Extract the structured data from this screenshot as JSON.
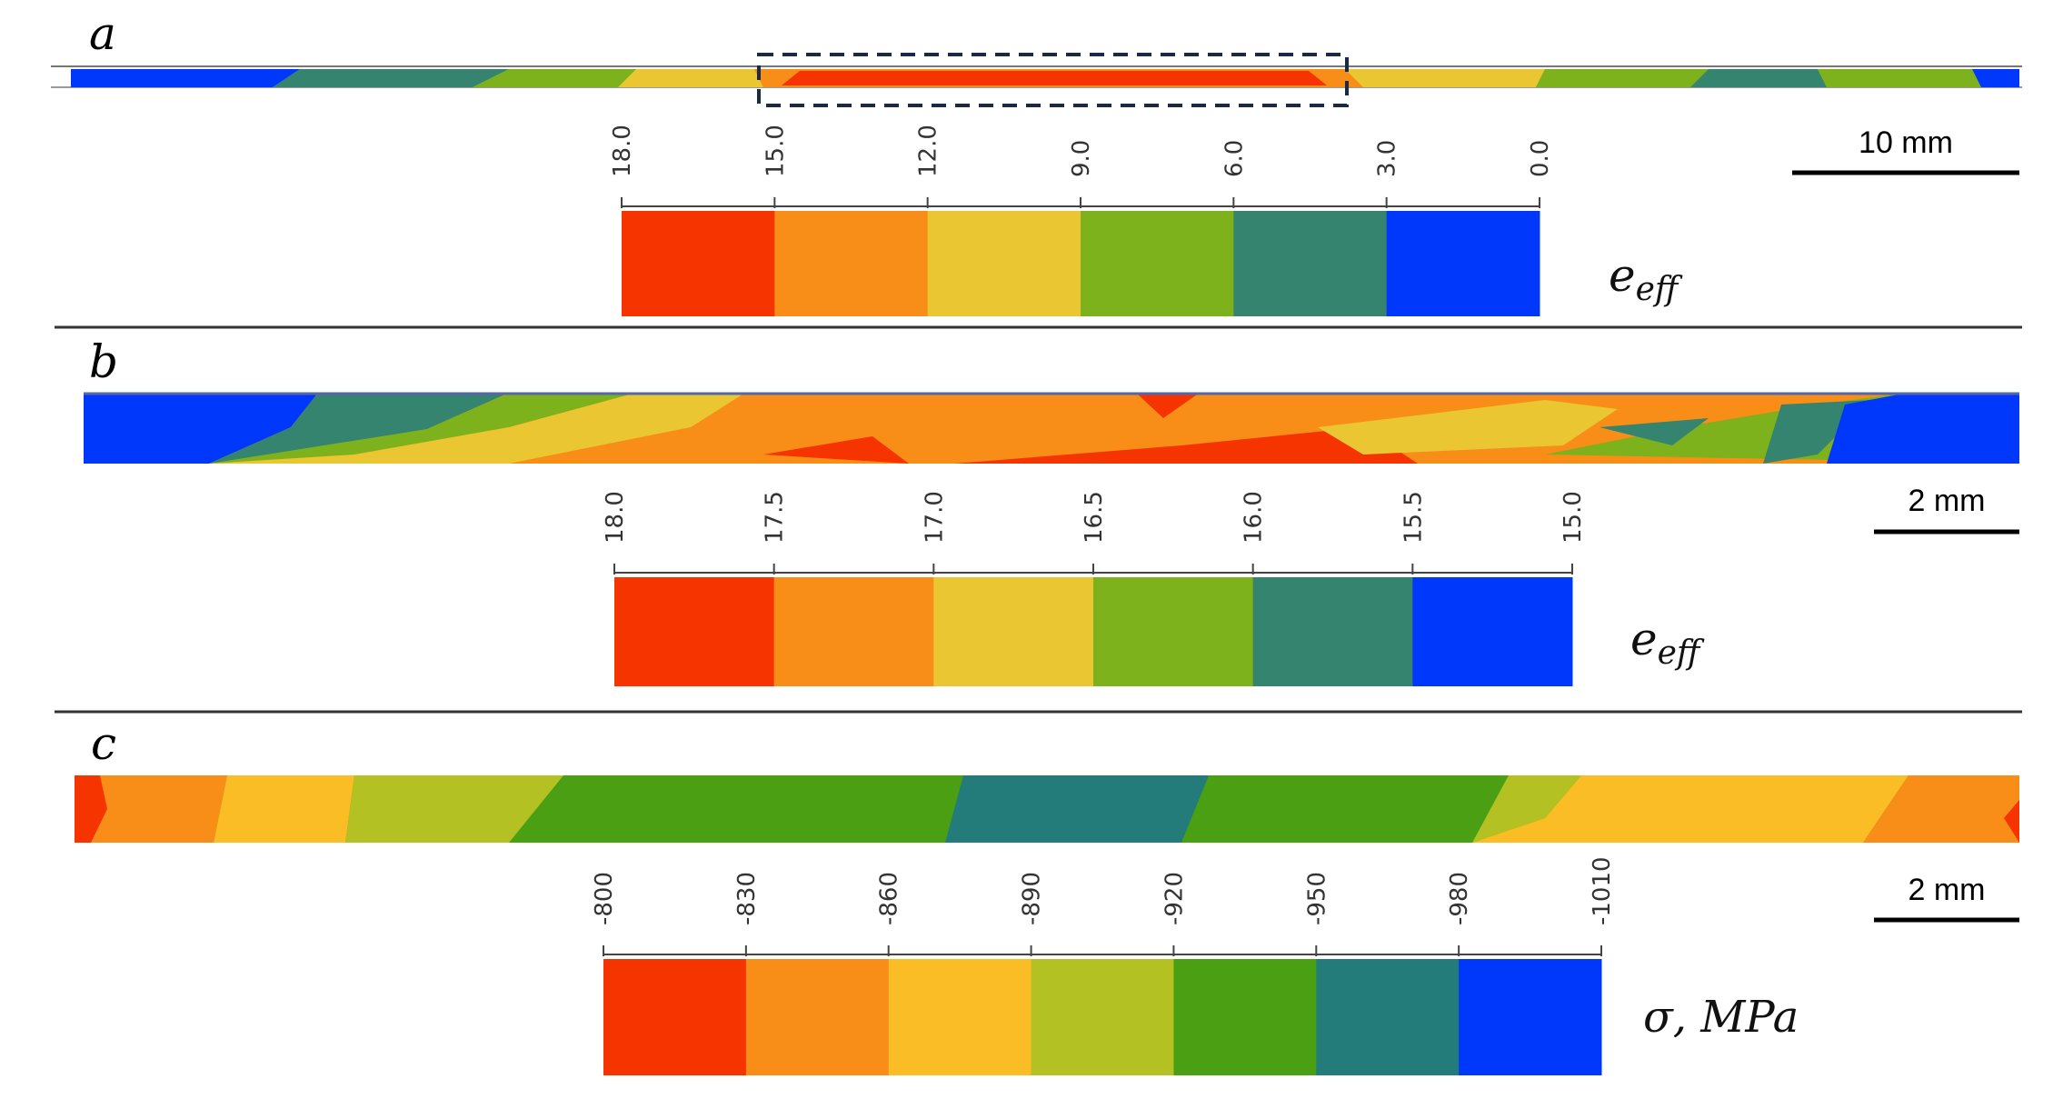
{
  "colors": {
    "red": "#f53400",
    "orange": "#f88d18",
    "yellow": "#e9c632",
    "yellow_c": "#fbbd25",
    "light_green": "#7db21c",
    "olive_green": "#b3c123",
    "green": "#4b9f13",
    "teal": "#35846f",
    "teal_c": "#237c7a",
    "blue": "#0038fb",
    "divider": "#333333"
  },
  "panels": [
    {
      "letter": "a",
      "scale_bar": "10 mm",
      "legend_ticks": [
        "18.0",
        "15.0",
        "12.0",
        "9.0",
        "6.0",
        "3.0",
        "0.0"
      ],
      "legend_colors": [
        "red",
        "orange",
        "yellow",
        "light_green",
        "teal",
        "blue"
      ],
      "quantity": {
        "base": "e",
        "sub": "eff"
      }
    },
    {
      "letter": "b",
      "scale_bar": "2 mm",
      "legend_ticks": [
        "18.0",
        "17.5",
        "17.0",
        "16.5",
        "16.0",
        "15.5",
        "15.0"
      ],
      "legend_colors": [
        "red",
        "orange",
        "yellow",
        "light_green",
        "teal",
        "blue"
      ],
      "quantity": {
        "base": "e",
        "sub": "eff"
      }
    },
    {
      "letter": "c",
      "scale_bar": "2 mm",
      "legend_ticks": [
        "-800",
        "-830",
        "-860",
        "-890",
        "-920",
        "-950",
        "-980",
        "-1010"
      ],
      "legend_colors": [
        "red",
        "orange",
        "yellow_c",
        "olive_green",
        "green",
        "teal_c",
        "blue"
      ],
      "quantity": {
        "base": "σ, MPa",
        "sub": ""
      }
    }
  ]
}
